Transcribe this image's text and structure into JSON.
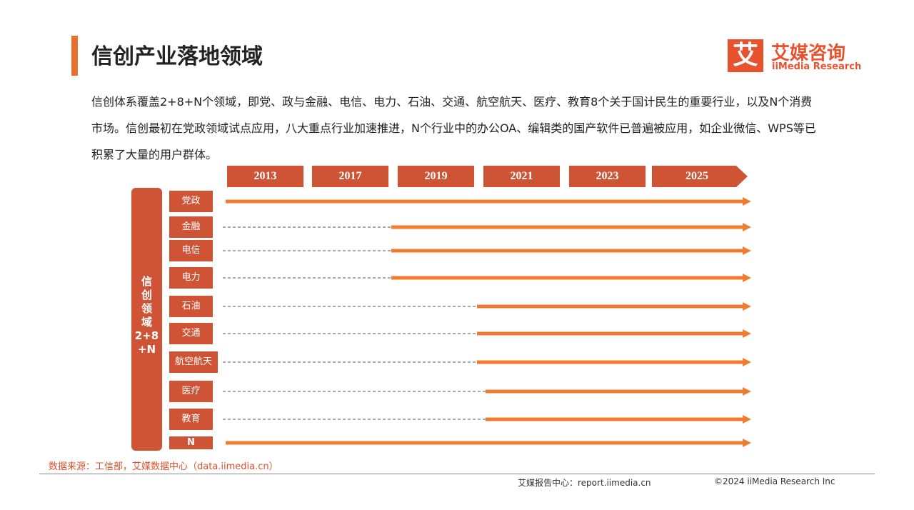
{
  "header": {
    "title": "信创产业落地领域",
    "logo_mark": "艾",
    "logo_name": "艾媒咨询",
    "logo_sub": "iiMedia Research"
  },
  "intro": "信创体系覆盖2+8+N个领域，即党、政与金融、电信、电力、石油、交通、航空航天、医疗、教育8个关于国计民生的重要行业，以及N个消费市场。信创最初在党政领域试点应用，八大重点行业加速推进，N个行业中的办公OA、编辑类的国产软件已普遍被应用，如企业微信、WPS等已积累了大量的用户群体。",
  "timeline": {
    "years": [
      "2013",
      "2017",
      "2019",
      "2021",
      "2023",
      "2025"
    ],
    "group_label": [
      "信",
      "创",
      "领",
      "域",
      "2+8",
      "+N"
    ],
    "rows": [
      "党政",
      "金融",
      "电信",
      "电力",
      "石油",
      "交通",
      "航空航天",
      "医疗",
      "教育",
      "N"
    ]
  },
  "footer": {
    "source": "数据来源：工信部，艾媒数据中心（data.iimedia.cn）",
    "report_center": "艾媒报告中心：report.iimedia.cn",
    "copyright": "©2024 iiMedia Research Inc"
  }
}
